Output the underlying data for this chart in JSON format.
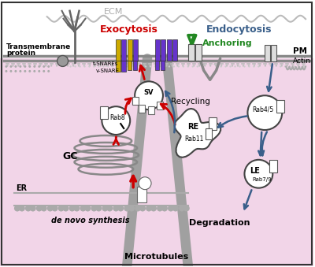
{
  "bg_color": "#f2d5e8",
  "white_bg": "#ffffff",
  "ecm_text": "ECM",
  "ecm_color": "#aaaaaa",
  "exocytosis_text": "Exocytosis",
  "exocytosis_color": "#cc0000",
  "endocytosis_text": "Endocytosis",
  "endocytosis_color": "#3a5f8a",
  "anchoring_text": "Anchoring",
  "anchoring_color": "#228822",
  "recycling_text": "Recycling",
  "pm_text": "PM",
  "actin_text": "Actin",
  "transmembrane_text1": "Transmembrane",
  "transmembrane_text2": "protein",
  "gc_text": "GC",
  "er_text": "ER",
  "de_novo_text": "de novo synthesis",
  "microtubules_text": "Microtubules",
  "sv_text": "SV",
  "re_text": "RE",
  "rab11_text": "Rab11",
  "rab4_text": "Rab4/5",
  "rab8_text": "Rab8",
  "rab7_text": "Rab7/9",
  "le_text": "LE",
  "degradation_text": "Degradation",
  "tsnare_text": "t-SNAREs",
  "vsnare_text": "v-SNARE",
  "gray_line": "#888888",
  "dark_gray": "#555555",
  "med_gray": "#888888"
}
